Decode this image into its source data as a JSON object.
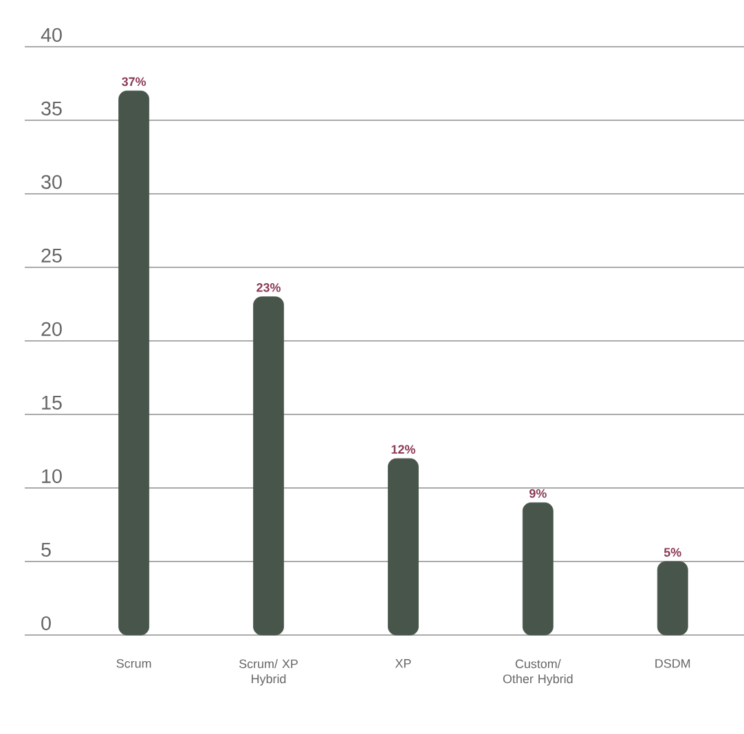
{
  "chart_data": {
    "type": "bar",
    "categories": [
      "Scrum",
      "Scrum/ XP Hybrid",
      "XP",
      "Custom/ Other Hybrid",
      "DSDM"
    ],
    "values": [
      37,
      23,
      12,
      9,
      5
    ],
    "value_labels": [
      "37%",
      "23%",
      "12%",
      "9%",
      "5%"
    ],
    "color": "#47554b",
    "ylim": [
      0,
      40
    ],
    "yticks": [
      0,
      5,
      10,
      15,
      20,
      25,
      30,
      35,
      40
    ],
    "grid": "y"
  }
}
